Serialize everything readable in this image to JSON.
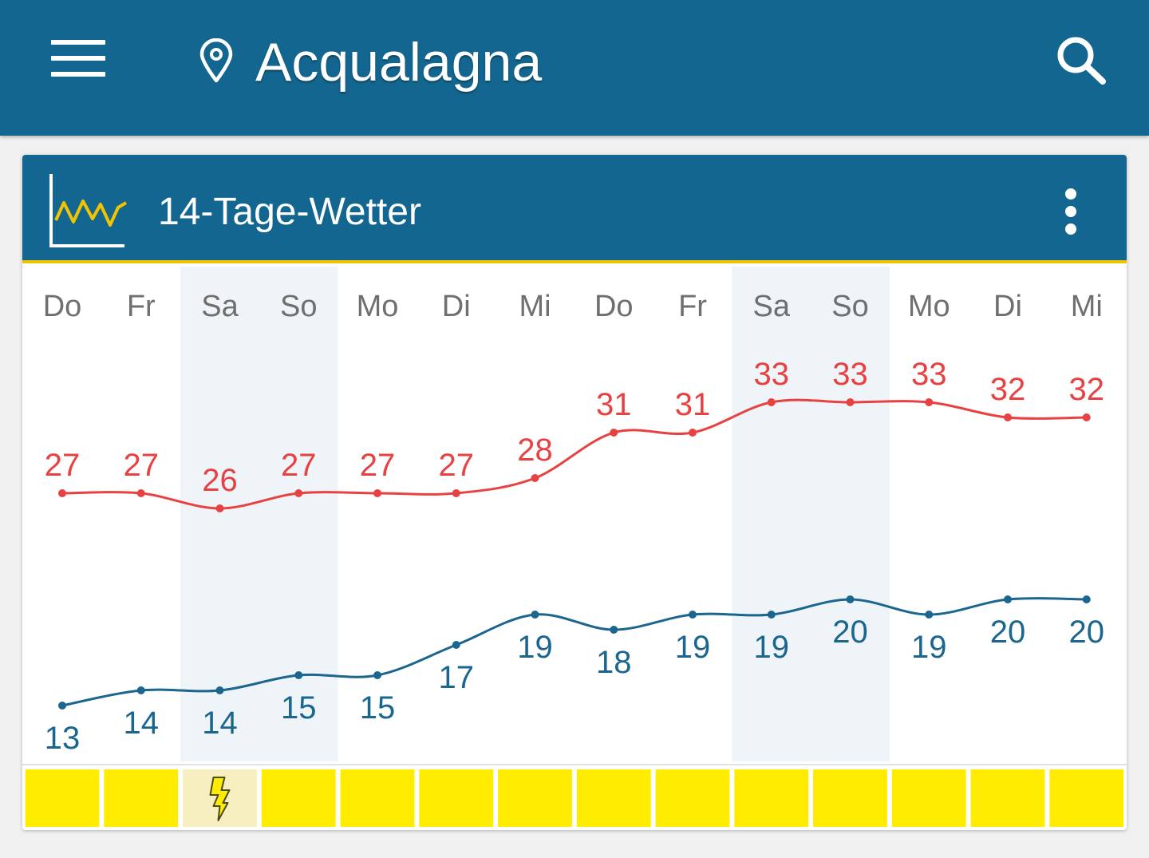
{
  "app_bar": {
    "title": "Acqualagna",
    "menu_icon": "hamburger-menu-icon",
    "location_icon": "map-pin-icon",
    "search_icon": "search-icon",
    "color": "#13668f"
  },
  "card": {
    "title": "14-Tage-Wetter",
    "icon": "trend-chart-icon",
    "more_icon": "more-vert-icon",
    "accent": "#f2c400"
  },
  "chart_data": {
    "type": "line",
    "categories": [
      "Do",
      "Fr",
      "Sa",
      "So",
      "Mo",
      "Di",
      "Mi",
      "Do",
      "Fr",
      "Sa",
      "So",
      "Mo",
      "Di",
      "Mi"
    ],
    "weekend_indices": [
      2,
      3,
      9,
      10
    ],
    "series": [
      {
        "name": "",
        "color": "#e84142",
        "values": [
          27,
          27,
          26,
          27,
          27,
          27,
          28,
          31,
          31,
          33,
          33,
          33,
          32,
          32
        ]
      },
      {
        "name": "",
        "color": "#1a668f",
        "values": [
          13,
          14,
          14,
          15,
          15,
          17,
          19,
          18,
          19,
          19,
          20,
          19,
          20,
          20
        ]
      }
    ],
    "ylim": [
      13,
      33
    ],
    "grid": false,
    "legend": "none",
    "weather_strip": {
      "normal_color": "#ffec00",
      "storm_color": "#f7efc0",
      "storm_icon": "thunderstorm-lightning-icon",
      "storm_days": [
        2
      ]
    }
  }
}
